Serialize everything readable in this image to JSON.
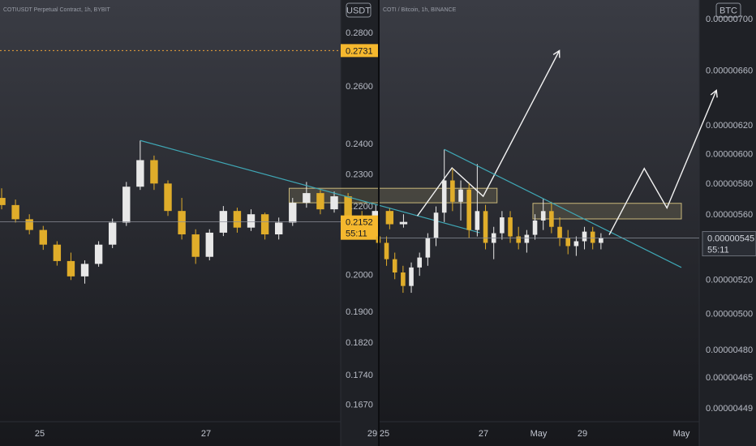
{
  "colors": {
    "candle_up": "#e8e8e8",
    "candle_down": "#e0ad2a",
    "trendline": "#3fa7b5",
    "box_stroke": "#c9b87a",
    "projection": "#f2f2f2",
    "target_line": "#f0a33a",
    "badge": "#f5b82e"
  },
  "chart_data": [
    {
      "type": "candlestick",
      "title": "COTIUSDT Perpetual Contract, 1h, BYBIT",
      "currency": "USDT",
      "y_ticks": [
        "0.2800",
        "0.2600",
        "0.2400",
        "0.2300",
        "0.2200",
        "0.2000",
        "0.1900",
        "0.1820",
        "0.1740",
        "0.1670"
      ],
      "x_ticks": [
        "25",
        "27",
        "29",
        "May"
      ],
      "target_label": "0.2731",
      "current_price_label": "0.2152",
      "countdown": "55:11",
      "scale": "log",
      "ylim": [
        0.163,
        0.293
      ],
      "candles": [
        {
          "date": "Apr 24 09:00",
          "o": 0.2215,
          "h": 0.225,
          "l": 0.2196,
          "c": 0.2225
        },
        {
          "date": "Apr 24 13:00",
          "o": 0.2225,
          "h": 0.2255,
          "l": 0.219,
          "c": 0.2203
        },
        {
          "date": "Apr 24 17:00",
          "o": 0.2203,
          "h": 0.222,
          "l": 0.215,
          "c": 0.216
        },
        {
          "date": "Apr 24 21:00",
          "o": 0.216,
          "h": 0.2175,
          "l": 0.2115,
          "c": 0.2128
        },
        {
          "date": "Apr 25 01:00",
          "o": 0.2128,
          "h": 0.214,
          "l": 0.207,
          "c": 0.2085
        },
        {
          "date": "Apr 25 05:00",
          "o": 0.2085,
          "h": 0.2095,
          "l": 0.2025,
          "c": 0.2038
        },
        {
          "date": "Apr 25 09:00",
          "o": 0.2038,
          "h": 0.2062,
          "l": 0.1985,
          "c": 0.1995
        },
        {
          "date": "Apr 25 13:00",
          "o": 0.1995,
          "h": 0.204,
          "l": 0.1975,
          "c": 0.203
        },
        {
          "date": "Apr 25 17:00",
          "o": 0.203,
          "h": 0.2095,
          "l": 0.2022,
          "c": 0.2085
        },
        {
          "date": "Apr 25 21:00",
          "o": 0.2085,
          "h": 0.2162,
          "l": 0.2075,
          "c": 0.215
        },
        {
          "date": "Apr 26 01:00",
          "o": 0.215,
          "h": 0.2275,
          "l": 0.214,
          "c": 0.226
        },
        {
          "date": "Apr 26 05:00",
          "o": 0.226,
          "h": 0.241,
          "l": 0.225,
          "c": 0.2345
        },
        {
          "date": "Apr 26 09:00",
          "o": 0.2345,
          "h": 0.236,
          "l": 0.225,
          "c": 0.227
        },
        {
          "date": "Apr 26 13:00",
          "o": 0.227,
          "h": 0.228,
          "l": 0.217,
          "c": 0.2185
        },
        {
          "date": "Apr 26 17:00",
          "o": 0.2185,
          "h": 0.2225,
          "l": 0.21,
          "c": 0.2115
        },
        {
          "date": "Apr 26 21:00",
          "o": 0.2115,
          "h": 0.213,
          "l": 0.203,
          "c": 0.205
        },
        {
          "date": "Apr 27 01:00",
          "o": 0.205,
          "h": 0.213,
          "l": 0.204,
          "c": 0.212
        },
        {
          "date": "Apr 27 05:00",
          "o": 0.212,
          "h": 0.22,
          "l": 0.211,
          "c": 0.2185
        },
        {
          "date": "Apr 27 09:00",
          "o": 0.2185,
          "h": 0.2195,
          "l": 0.212,
          "c": 0.2135
        },
        {
          "date": "Apr 27 13:00",
          "o": 0.2135,
          "h": 0.219,
          "l": 0.2125,
          "c": 0.2175
        },
        {
          "date": "Apr 27 17:00",
          "o": 0.2175,
          "h": 0.218,
          "l": 0.21,
          "c": 0.2115
        },
        {
          "date": "Apr 27 21:00",
          "o": 0.2115,
          "h": 0.2165,
          "l": 0.21,
          "c": 0.215
        },
        {
          "date": "Apr 28 01:00",
          "o": 0.215,
          "h": 0.2225,
          "l": 0.214,
          "c": 0.221
        },
        {
          "date": "Apr 28 05:00",
          "o": 0.221,
          "h": 0.2275,
          "l": 0.2195,
          "c": 0.224
        },
        {
          "date": "Apr 28 09:00",
          "o": 0.224,
          "h": 0.225,
          "l": 0.2175,
          "c": 0.219
        },
        {
          "date": "Apr 28 13:00",
          "o": 0.219,
          "h": 0.2245,
          "l": 0.218,
          "c": 0.223
        },
        {
          "date": "Apr 28 17:00",
          "o": 0.223,
          "h": 0.224,
          "l": 0.2155,
          "c": 0.217
        },
        {
          "date": "Apr 28 21:00",
          "o": 0.217,
          "h": 0.2185,
          "l": 0.2115,
          "c": 0.2135
        },
        {
          "date": "Apr 29 01:00",
          "o": 0.2135,
          "h": 0.2205,
          "l": 0.2125,
          "c": 0.2185
        },
        {
          "date": "Apr 29 05:00",
          "o": 0.2185,
          "h": 0.2195,
          "l": 0.213,
          "c": 0.2145
        },
        {
          "date": "Apr 29 09:00",
          "o": 0.2145,
          "h": 0.2175,
          "l": 0.2135,
          "c": 0.2152
        }
      ],
      "trendline": {
        "from": {
          "date": "Apr 26 05:00",
          "price": 0.241
        },
        "to": {
          "date": "Apr 30 07:00",
          "price": 0.212
        }
      },
      "zone": {
        "from_date": "Apr 28 00:00",
        "to_date": "Apr 30 12:00",
        "top": 0.2255,
        "bottom": 0.221
      },
      "projection_path": [
        {
          "date": "Apr 29 13:00",
          "price": 0.217
        },
        {
          "date": "Apr 29 23:00",
          "price": 0.232
        },
        {
          "date": "Apr 30 08:00",
          "price": 0.223
        },
        {
          "date": "May 01 06:00",
          "price": 0.2731
        }
      ]
    },
    {
      "type": "candlestick",
      "title": "COTI / Bitcoin, 1h, BINANCE",
      "currency": "BTC",
      "y_ticks": [
        "0.00000700",
        "0.00000660",
        "0.00000620",
        "0.00000600",
        "0.00000580",
        "0.00000560",
        "0.00000520",
        "0.00000500",
        "0.00000480",
        "0.00000465",
        "0.00000449"
      ],
      "x_ticks": [
        "25",
        "27",
        "29",
        "May"
      ],
      "current_price_label": "0.00000545",
      "countdown": "55:11",
      "scale": "log",
      "ylim": [
        4.42e-06,
        7.15e-06
      ],
      "candles": [
        {
          "date": "Apr 24 21:00",
          "o": 5.46e-06,
          "h": 5.5e-06,
          "l": 5.38e-06,
          "c": 5.42e-06
        },
        {
          "date": "Apr 25 01:00",
          "o": 5.42e-06,
          "h": 5.46e-06,
          "l": 5.28e-06,
          "c": 5.32e-06
        },
        {
          "date": "Apr 25 05:00",
          "o": 5.32e-06,
          "h": 5.36e-06,
          "l": 5.2e-06,
          "c": 5.24e-06
        },
        {
          "date": "Apr 25 09:00",
          "o": 5.24e-06,
          "h": 5.28e-06,
          "l": 5.12e-06,
          "c": 5.16e-06
        },
        {
          "date": "Apr 25 13:00",
          "o": 5.16e-06,
          "h": 5.3e-06,
          "l": 5.12e-06,
          "c": 5.27e-06
        },
        {
          "date": "Apr 25 17:00",
          "o": 5.27e-06,
          "h": 5.36e-06,
          "l": 5.22e-06,
          "c": 5.33e-06
        },
        {
          "date": "Apr 25 21:00",
          "o": 5.33e-06,
          "h": 5.48e-06,
          "l": 5.28e-06,
          "c": 5.45e-06
        },
        {
          "date": "Apr 26 01:00",
          "o": 5.45e-06,
          "h": 5.65e-06,
          "l": 5.4e-06,
          "c": 5.61e-06
        },
        {
          "date": "Apr 26 05:00",
          "o": 5.61e-06,
          "h": 6.03e-06,
          "l": 5.55e-06,
          "c": 5.82e-06
        },
        {
          "date": "Apr 26 09:00",
          "o": 5.82e-06,
          "h": 5.9e-06,
          "l": 5.62e-06,
          "c": 5.68e-06
        },
        {
          "date": "Apr 26 13:00",
          "o": 5.68e-06,
          "h": 5.82e-06,
          "l": 5.56e-06,
          "c": 5.76e-06
        },
        {
          "date": "Apr 26 17:00",
          "o": 5.76e-06,
          "h": 5.8e-06,
          "l": 5.45e-06,
          "c": 5.5e-06
        },
        {
          "date": "Apr 26 21:00",
          "o": 5.5e-06,
          "h": 5.93e-06,
          "l": 5.46e-06,
          "c": 5.62e-06
        },
        {
          "date": "Apr 27 01:00",
          "o": 5.62e-06,
          "h": 5.66e-06,
          "l": 5.38e-06,
          "c": 5.42e-06
        },
        {
          "date": "Apr 27 05:00",
          "o": 5.42e-06,
          "h": 5.52e-06,
          "l": 5.32e-06,
          "c": 5.48e-06
        },
        {
          "date": "Apr 27 09:00",
          "o": 5.48e-06,
          "h": 5.62e-06,
          "l": 5.44e-06,
          "c": 5.58e-06
        },
        {
          "date": "Apr 27 13:00",
          "o": 5.58e-06,
          "h": 5.62e-06,
          "l": 5.42e-06,
          "c": 5.46e-06
        },
        {
          "date": "Apr 27 17:00",
          "o": 5.46e-06,
          "h": 5.52e-06,
          "l": 5.38e-06,
          "c": 5.42e-06
        },
        {
          "date": "Apr 27 21:00",
          "o": 5.42e-06,
          "h": 5.5e-06,
          "l": 5.36e-06,
          "c": 5.47e-06
        },
        {
          "date": "Apr 28 01:00",
          "o": 5.47e-06,
          "h": 5.6e-06,
          "l": 5.44e-06,
          "c": 5.56e-06
        },
        {
          "date": "Apr 28 05:00",
          "o": 5.56e-06,
          "h": 5.7e-06,
          "l": 5.5e-06,
          "c": 5.62e-06
        },
        {
          "date": "Apr 28 09:00",
          "o": 5.62e-06,
          "h": 5.68e-06,
          "l": 5.48e-06,
          "c": 5.52e-06
        },
        {
          "date": "Apr 28 13:00",
          "o": 5.52e-06,
          "h": 5.58e-06,
          "l": 5.4e-06,
          "c": 5.45e-06
        },
        {
          "date": "Apr 28 17:00",
          "o": 5.45e-06,
          "h": 5.5e-06,
          "l": 5.35e-06,
          "c": 5.4e-06
        },
        {
          "date": "Apr 28 21:00",
          "o": 5.4e-06,
          "h": 5.46e-06,
          "l": 5.34e-06,
          "c": 5.43e-06
        },
        {
          "date": "Apr 29 01:00",
          "o": 5.43e-06,
          "h": 5.52e-06,
          "l": 5.38e-06,
          "c": 5.49e-06
        },
        {
          "date": "Apr 29 05:00",
          "o": 5.49e-06,
          "h": 5.52e-06,
          "l": 5.38e-06,
          "c": 5.42e-06
        },
        {
          "date": "Apr 29 09:00",
          "o": 5.42e-06,
          "h": 5.48e-06,
          "l": 5.38e-06,
          "c": 5.45e-06
        }
      ],
      "trendline": {
        "from": {
          "date": "Apr 26 05:00",
          "price": 6.03e-06
        },
        "to": {
          "date": "May 01 00:00",
          "price": 5.27e-06
        }
      },
      "zone": {
        "from_date": "Apr 28 00:00",
        "to_date": "May 01 00:00",
        "top": 5.67e-06,
        "bottom": 5.57e-06
      },
      "projection_path": [
        {
          "date": "Apr 29 13:00",
          "price": 5.47e-06
        },
        {
          "date": "Apr 30 06:00",
          "price": 5.9e-06
        },
        {
          "date": "Apr 30 17:00",
          "price": 5.64e-06
        },
        {
          "date": "May 01 17:00",
          "price": 6.45e-06
        }
      ]
    }
  ]
}
